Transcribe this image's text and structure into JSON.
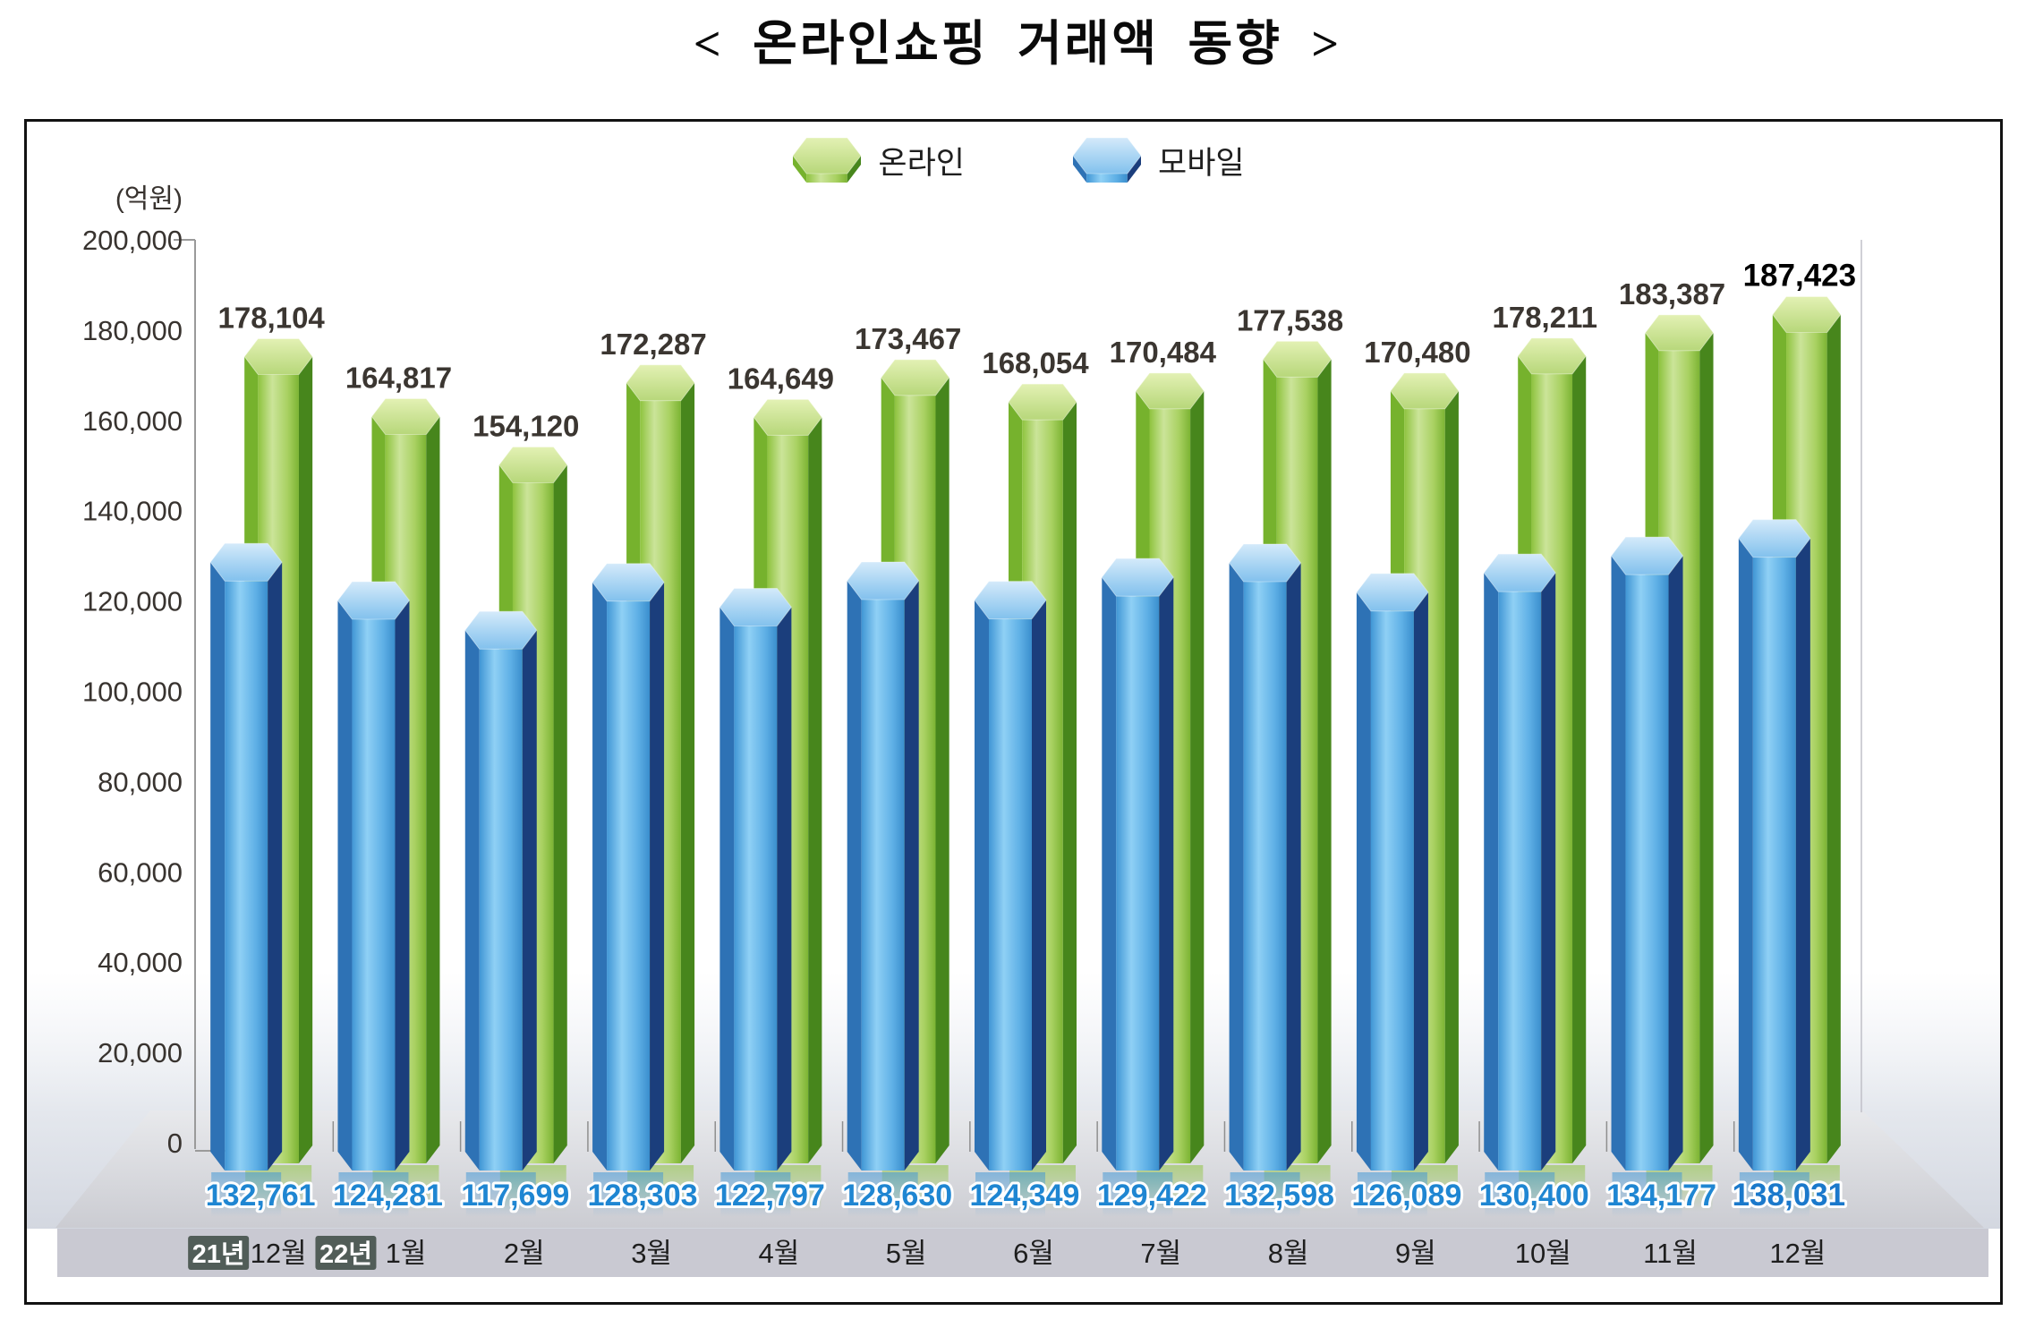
{
  "chart_data": {
    "type": "bar",
    "variant": "3d-hexagonal-columns",
    "title": "< 온라인쇼핑 거래액 동향 >",
    "y_unit": "(억원)",
    "y_axis": {
      "min": 0,
      "max": 200000,
      "step": 20000,
      "tick_labels": [
        "200,000",
        "180,000",
        "160,000",
        "140,000",
        "120,000",
        "100,000",
        "80,000",
        "60,000",
        "40,000",
        "20,000",
        "0"
      ]
    },
    "categories": [
      {
        "year_badge": "21년",
        "month": "12월"
      },
      {
        "year_badge": "22년",
        "month": "1월"
      },
      {
        "month": "2월"
      },
      {
        "month": "3월"
      },
      {
        "month": "4월"
      },
      {
        "month": "5월"
      },
      {
        "month": "6월"
      },
      {
        "month": "7월"
      },
      {
        "month": "8월"
      },
      {
        "month": "9월"
      },
      {
        "month": "10월"
      },
      {
        "month": "11월"
      },
      {
        "month": "12월"
      }
    ],
    "series": [
      {
        "name": "온라인",
        "values": [
          178104,
          164817,
          154120,
          172287,
          164649,
          173467,
          168054,
          170484,
          177538,
          170480,
          178211,
          183387,
          187423
        ],
        "palette": {
          "top_light": "#e3f1b4",
          "top_dark": "#b7d77a",
          "left": "#76b22d",
          "front_edge": "#8ec33e",
          "front_light": "#cbe499",
          "front_mid": "#a9d162",
          "front_end": "#7cb433",
          "right": "#47861c"
        }
      },
      {
        "name": "모바일",
        "values": [
          132761,
          124281,
          117699,
          128303,
          122797,
          128630,
          124349,
          129422,
          132598,
          126089,
          130400,
          134177,
          138031
        ],
        "palette": {
          "top_light": "#d4eafa",
          "top_dark": "#82c1ed",
          "left": "#2e72b5",
          "front_edge": "#4096d5",
          "front_light": "#8fd0f5",
          "front_mid": "#5fb0e6",
          "front_end": "#3a8ecd",
          "right": "#1b3e7c"
        }
      }
    ],
    "legend_position": "top-center",
    "grid": false,
    "emphasize_last_value": true,
    "colors": {
      "online_value_label": "#3b3631",
      "mobile_value_label": "#1f86d2",
      "axis_line": "#9a9a9a",
      "plot_right_edge": "#c0c0c8",
      "month_band_bg": "#c9c9d2",
      "year_badge_bg": "#515d58",
      "year_badge_text": "#ffffff",
      "frame_border": "#121212",
      "floor_light": "#e8e9ec",
      "floor_dark": "#cbccd2",
      "wall_tint": "#d3d7e0"
    }
  }
}
